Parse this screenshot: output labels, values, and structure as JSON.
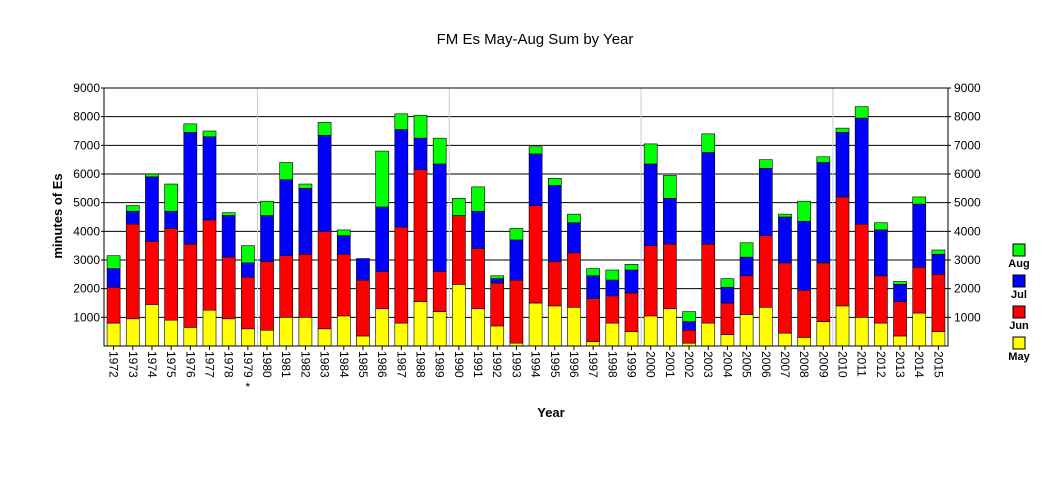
{
  "chart_data": {
    "type": "bar",
    "stacked": true,
    "title": "FM Es May-Aug Sum by Year",
    "xlabel": "Year",
    "ylabel": "minutes of Es",
    "ylim": [
      0,
      9000
    ],
    "yticks": [
      1000,
      2000,
      3000,
      4000,
      5000,
      6000,
      7000,
      8000,
      9000
    ],
    "grid": true,
    "legend_position": "right",
    "categories": [
      "1972",
      "1973",
      "1974",
      "1975",
      "1976",
      "1977",
      "1978",
      "1979",
      "1980",
      "1981",
      "1982",
      "1983",
      "1984",
      "1985",
      "1986",
      "1987",
      "1988",
      "1989",
      "1990",
      "1991",
      "1992",
      "1993",
      "1994",
      "1995",
      "1996",
      "1997",
      "1998",
      "1999",
      "2000",
      "2001",
      "2002",
      "2003",
      "2004",
      "2005",
      "2006",
      "2007",
      "2008",
      "2009",
      "2010",
      "2011",
      "2012",
      "2013",
      "2014",
      "2015"
    ],
    "annotations": [
      {
        "category": "1979",
        "text": "*"
      }
    ],
    "series": [
      {
        "name": "May",
        "color": "#ffff00",
        "values": [
          800,
          950,
          1450,
          900,
          650,
          1250,
          950,
          600,
          550,
          1000,
          1000,
          600,
          1050,
          350,
          1300,
          800,
          1550,
          1200,
          2150,
          1300,
          700,
          100,
          1500,
          1400,
          1350,
          150,
          800,
          500,
          1050,
          1300,
          100,
          800,
          400,
          1100,
          1350,
          450,
          300,
          850,
          1400,
          1000,
          800,
          350,
          1150,
          500
        ]
      },
      {
        "name": "Jun",
        "color": "#ff0000",
        "values": [
          1250,
          3300,
          2200,
          3200,
          2900,
          3150,
          2150,
          1800,
          2400,
          2150,
          2200,
          3400,
          2150,
          1950,
          1300,
          3350,
          4600,
          1400,
          2400,
          2100,
          1500,
          2200,
          3400,
          1550,
          1900,
          1500,
          950,
          1350,
          2450,
          2250,
          450,
          2750,
          1100,
          1350,
          2500,
          2450,
          1650,
          2050,
          3800,
          3250,
          1650,
          1200,
          1600,
          2000
        ]
      },
      {
        "name": "Jul",
        "color": "#0000ff",
        "values": [
          650,
          450,
          2250,
          600,
          3900,
          2900,
          1450,
          500,
          1600,
          2650,
          2300,
          3350,
          650,
          750,
          2250,
          3400,
          1100,
          3750,
          0,
          1300,
          150,
          1400,
          1800,
          2650,
          1050,
          800,
          550,
          800,
          2850,
          1600,
          300,
          3200,
          550,
          650,
          2350,
          1600,
          2400,
          3500,
          2250,
          3700,
          1600,
          600,
          2200,
          700
        ]
      },
      {
        "name": "Aug",
        "color": "#00ff00",
        "values": [
          450,
          200,
          100,
          950,
          300,
          200,
          100,
          600,
          500,
          600,
          150,
          450,
          200,
          0,
          1950,
          550,
          800,
          900,
          600,
          850,
          100,
          400,
          250,
          250,
          300,
          250,
          350,
          200,
          700,
          800,
          350,
          650,
          300,
          500,
          300,
          100,
          700,
          200,
          150,
          400,
          250,
          100,
          250,
          150
        ]
      }
    ]
  }
}
